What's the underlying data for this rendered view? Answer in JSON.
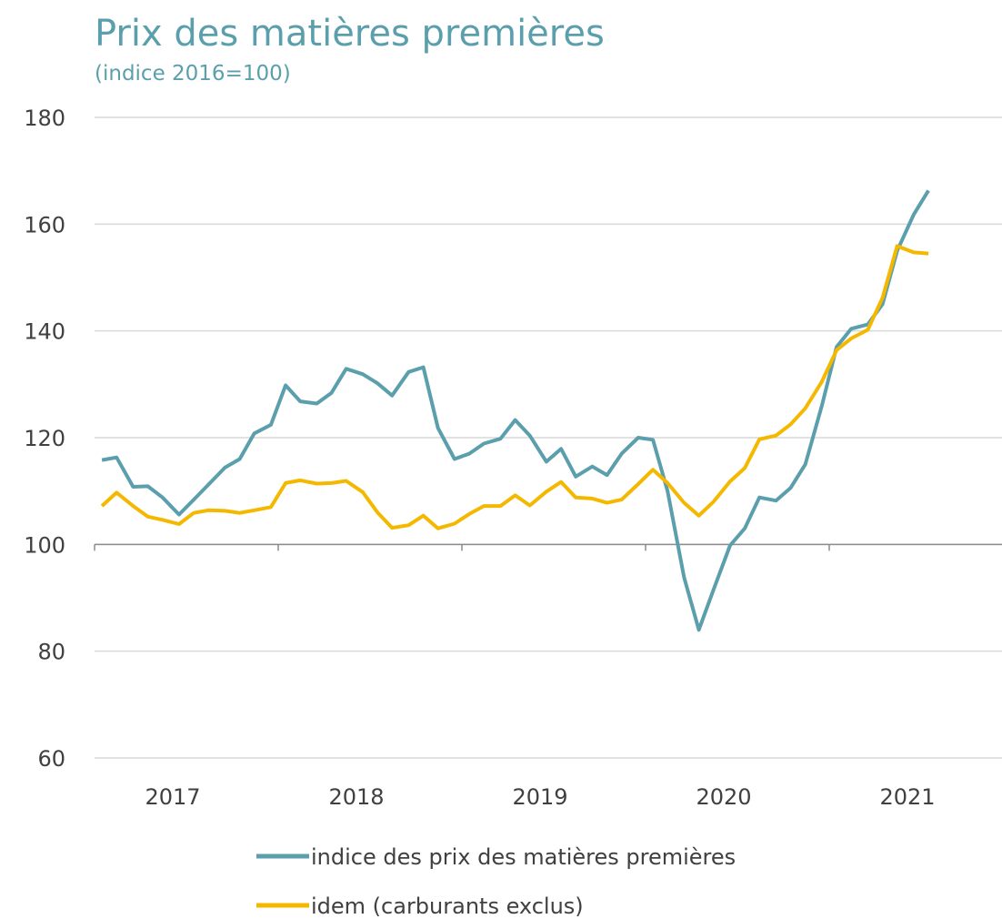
{
  "chart_data": {
    "type": "line",
    "title": "Prix des matières premières",
    "subtitle": "(indice 2016=100)",
    "x": [
      2017.04,
      2017.12,
      2017.21,
      2017.29,
      2017.37,
      2017.46,
      2017.54,
      2017.62,
      2017.71,
      2017.79,
      2017.87,
      2017.96,
      2018.04,
      2018.12,
      2018.21,
      2018.29,
      2018.37,
      2018.46,
      2018.54,
      2018.62,
      2018.71,
      2018.79,
      2018.87,
      2018.96,
      2019.04,
      2019.12,
      2019.21,
      2019.29,
      2019.37,
      2019.46,
      2019.54,
      2019.62,
      2019.71,
      2019.79,
      2019.87,
      2019.96,
      2020.04,
      2020.12,
      2020.21,
      2020.29,
      2020.37,
      2020.46,
      2020.54,
      2020.62,
      2020.71,
      2020.79,
      2020.87,
      2020.96,
      2021.04,
      2021.12,
      2021.21,
      2021.29,
      2021.37,
      2021.46,
      2021.54
    ],
    "series": [
      {
        "name": "indice des prix des matières premières",
        "color": "#5b9fad",
        "values": [
          115.8,
          116.3,
          110.8,
          110.9,
          108.8,
          105.6,
          108.4,
          111.2,
          114.4,
          116.0,
          120.8,
          122.4,
          129.8,
          126.8,
          126.4,
          128.4,
          132.9,
          131.9,
          130.2,
          127.9,
          132.3,
          133.2,
          121.8,
          116.0,
          117.0,
          118.9,
          119.8,
          123.3,
          120.4,
          115.5,
          117.9,
          112.7,
          114.6,
          113.0,
          117.0,
          120.0,
          119.6,
          110.0,
          93.8,
          84.0,
          91.5,
          99.8,
          103.0,
          108.8,
          108.2,
          110.6,
          115.0,
          126.0,
          137.0,
          140.4,
          141.2,
          145.0,
          155.0,
          161.8,
          166.3
        ]
      },
      {
        "name": "idem (carburants exclus)",
        "color": "#f5b800",
        "values": [
          107.2,
          109.7,
          107.2,
          105.2,
          104.6,
          103.8,
          105.9,
          106.4,
          106.3,
          105.9,
          106.4,
          107.0,
          111.5,
          112.0,
          111.4,
          111.5,
          111.9,
          109.8,
          106.0,
          103.1,
          103.6,
          105.4,
          103.0,
          103.9,
          105.7,
          107.2,
          107.2,
          109.2,
          107.3,
          109.9,
          111.7,
          108.8,
          108.6,
          107.8,
          108.4,
          111.3,
          114.0,
          111.5,
          107.8,
          105.4,
          108.0,
          111.8,
          114.3,
          119.7,
          120.4,
          122.5,
          125.5,
          130.5,
          136.4,
          138.6,
          140.2,
          146.2,
          155.9,
          154.7,
          154.5
        ]
      }
    ],
    "xlim": [
      2017,
      2022
    ],
    "xticks": [
      2017,
      2018,
      2019,
      2020,
      2021
    ],
    "ylim": [
      60,
      180
    ],
    "yticks": [
      60,
      80,
      100,
      120,
      140,
      160,
      180
    ],
    "x_axis_crosses": 100,
    "grid": true,
    "legend": "bottom"
  }
}
